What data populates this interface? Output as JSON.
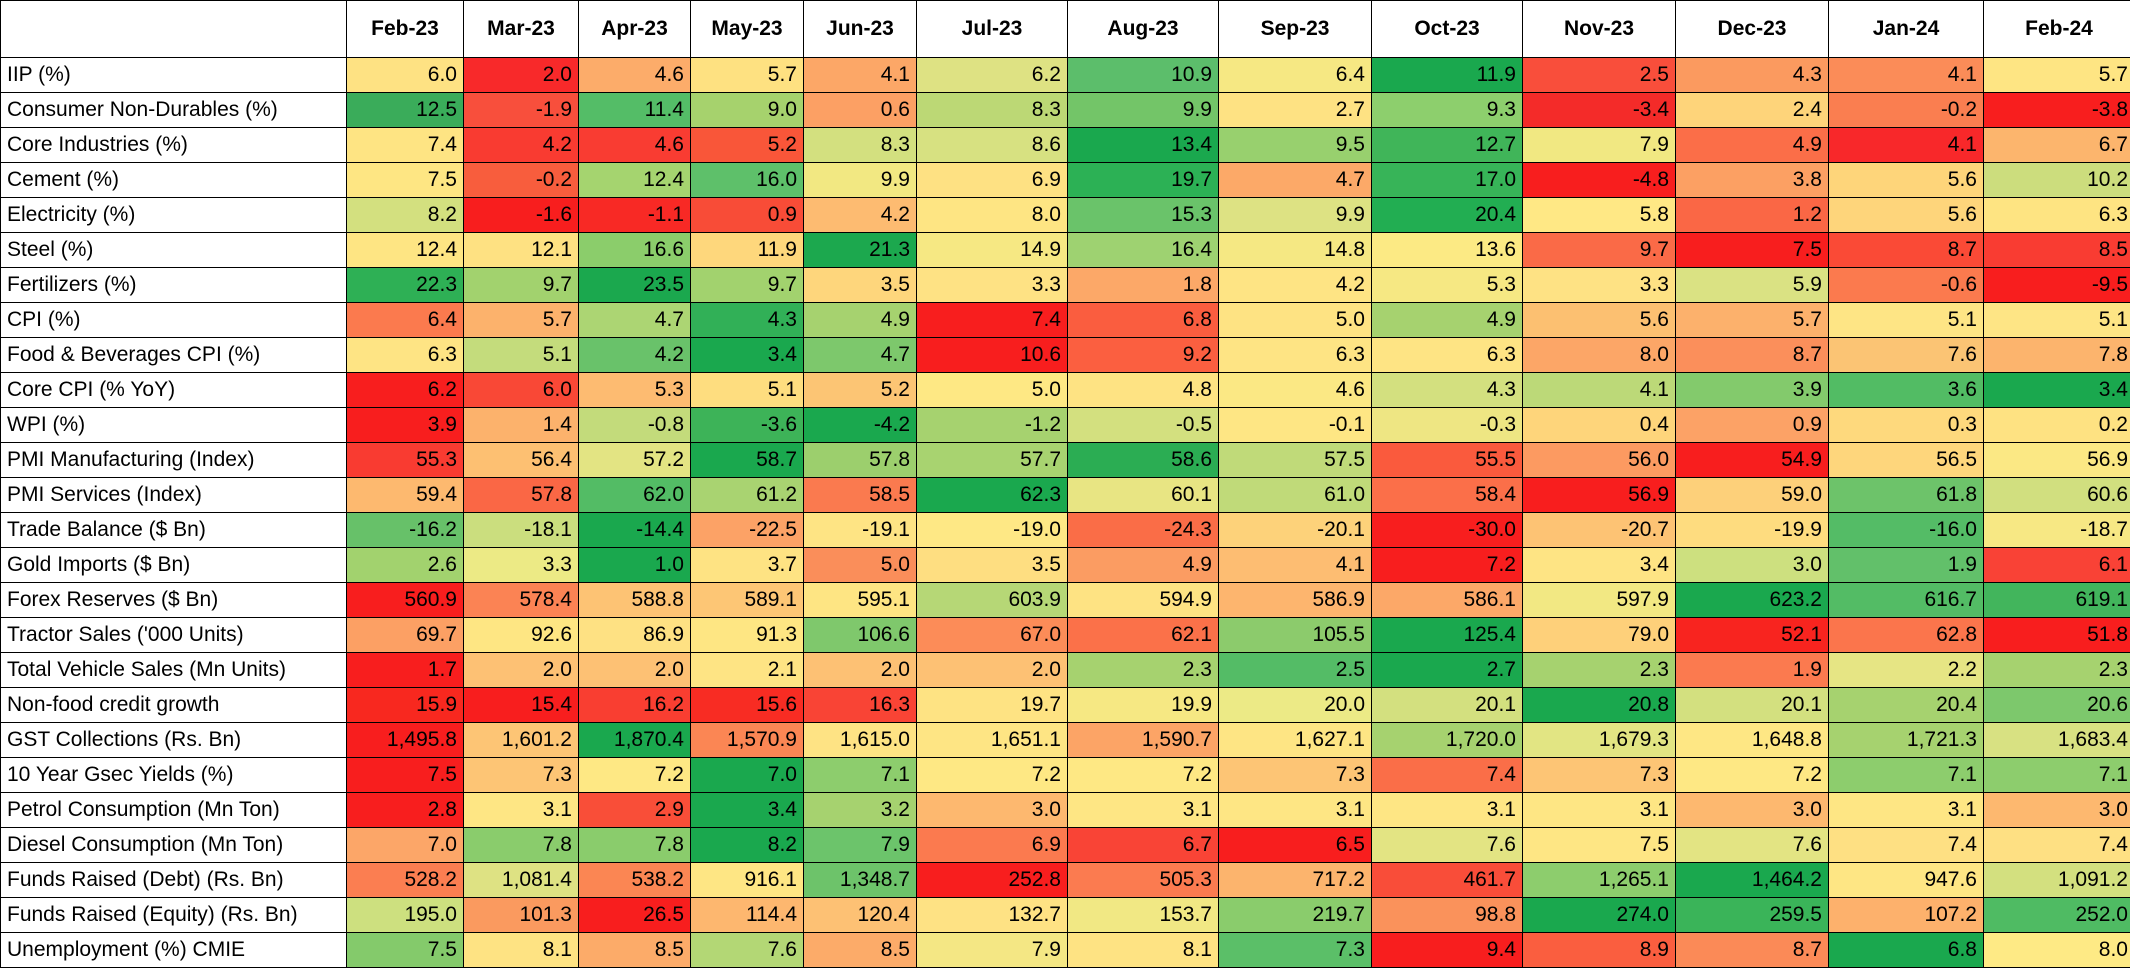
{
  "chart_data": {
    "type": "table",
    "columns": [
      "Feb-23",
      "Mar-23",
      "Apr-23",
      "May-23",
      "Jun-23",
      "Jul-23",
      "Aug-23",
      "Sep-23",
      "Oct-23",
      "Nov-23",
      "Dec-23",
      "Jan-24",
      "Feb-24"
    ],
    "rows": [
      {
        "label": "IIP (%)",
        "values": [
          "6.0",
          "2.0",
          "4.6",
          "5.7",
          "4.1",
          "6.2",
          "10.9",
          "6.4",
          "11.9",
          "2.5",
          "4.3",
          "4.1",
          "5.7"
        ],
        "colors": [
          "#fee283",
          "#f8292a",
          "#fcac6a",
          "#fee181",
          "#fca767",
          "#dee283",
          "#5cbe6b",
          "#f6e883",
          "#1aa84e",
          "#f94e3b",
          "#fb9a5f",
          "#fb8c58",
          "#fee583"
        ]
      },
      {
        "label": "Consumer Non-Durables (%)",
        "values": [
          "12.5",
          "-1.9",
          "11.4",
          "9.0",
          "0.6",
          "8.3",
          "9.9",
          "2.7",
          "9.3",
          "-3.4",
          "2.4",
          "-0.2",
          "-3.8"
        ],
        "colors": [
          "#3aac5a",
          "#f84f3c",
          "#54bd67",
          "#a6d26d",
          "#fca064",
          "#bcd875",
          "#73c568",
          "#fee283",
          "#8dcf6d",
          "#f42b29",
          "#fed47a",
          "#fa7e50",
          "#f81e1e"
        ]
      },
      {
        "label": "Core Industries (%)",
        "values": [
          "7.4",
          "4.2",
          "4.6",
          "5.2",
          "8.3",
          "8.6",
          "13.4",
          "9.5",
          "12.7",
          "7.9",
          "4.9",
          "4.1",
          "6.7"
        ],
        "colors": [
          "#fee483",
          "#f93b31",
          "#f93c32",
          "#f95639",
          "#d3e07f",
          "#d7e181",
          "#1aa84e",
          "#98d06e",
          "#40b559",
          "#f1e882",
          "#fb6e48",
          "#f8282a",
          "#fcb56d"
        ]
      },
      {
        "label": "Cement (%)",
        "values": [
          "7.5",
          "-0.2",
          "12.4",
          "16.0",
          "9.9",
          "6.9",
          "19.7",
          "4.7",
          "17.0",
          "-4.8",
          "3.8",
          "5.6",
          "10.2"
        ],
        "colors": [
          "#fee683",
          "#f85d3d",
          "#a5d46f",
          "#5ec06a",
          "#f2e882",
          "#fee183",
          "#2cb155",
          "#fca968",
          "#37b458",
          "#f81e1e",
          "#fca063",
          "#fed57a",
          "#ccdd7d"
        ]
      },
      {
        "label": "Electricity (%)",
        "values": [
          "8.2",
          "-1.6",
          "-1.1",
          "0.9",
          "4.2",
          "8.0",
          "15.3",
          "9.9",
          "20.4",
          "5.8",
          "1.2",
          "5.6",
          "6.3"
        ],
        "colors": [
          "#d3e07f",
          "#f81e1e",
          "#f82925",
          "#f84c37",
          "#fdbb71",
          "#fee583",
          "#6ac36a",
          "#dde283",
          "#22ae52",
          "#ffe885",
          "#fa6745",
          "#fed57b",
          "#fee482"
        ]
      },
      {
        "label": "Steel (%)",
        "values": [
          "12.4",
          "12.1",
          "16.6",
          "11.9",
          "21.3",
          "14.9",
          "16.4",
          "14.8",
          "13.6",
          "9.7",
          "7.5",
          "8.7",
          "8.5"
        ],
        "colors": [
          "#fee583",
          "#fee182",
          "#8bcd6b",
          "#fed77c",
          "#1ca84e",
          "#f6e883",
          "#9ed271",
          "#f5e883",
          "#fcea84",
          "#fa6a47",
          "#f81e1e",
          "#fa4a36",
          "#f93c32"
        ]
      },
      {
        "label": "Fertilizers (%)",
        "values": [
          "22.3",
          "9.7",
          "23.5",
          "9.7",
          "3.5",
          "3.3",
          "1.8",
          "4.2",
          "5.3",
          "3.3",
          "5.9",
          "-0.6",
          "-9.5"
        ],
        "colors": [
          "#2eb055",
          "#a2d26e",
          "#1ba84e",
          "#a2d26e",
          "#fed67c",
          "#fee284",
          "#fca868",
          "#fee484",
          "#f6e883",
          "#fee284",
          "#dae283",
          "#fb7a4e",
          "#f81e1e"
        ]
      },
      {
        "label": "CPI (%)",
        "values": [
          "6.4",
          "5.7",
          "4.7",
          "4.3",
          "4.9",
          "7.4",
          "6.8",
          "5.0",
          "4.9",
          "5.6",
          "5.7",
          "5.1",
          "5.1"
        ],
        "colors": [
          "#fb7a4e",
          "#fcb26c",
          "#acd573",
          "#31b057",
          "#a6d26f",
          "#f81e1e",
          "#fa5d3f",
          "#fee383",
          "#a6d26f",
          "#fcc071",
          "#fcb16c",
          "#fee585",
          "#fee585"
        ]
      },
      {
        "label": "Food & Beverages CPI (%)",
        "values": [
          "6.3",
          "5.1",
          "4.2",
          "3.4",
          "4.7",
          "10.6",
          "9.2",
          "6.3",
          "6.3",
          "8.0",
          "8.7",
          "7.6",
          "7.8"
        ],
        "colors": [
          "#fee484",
          "#c4dc7c",
          "#69c26a",
          "#1aa84e",
          "#7dc86c",
          "#f81e1e",
          "#fb5f40",
          "#fee484",
          "#fee484",
          "#fca667",
          "#fb8f5b",
          "#fbc474",
          "#fcb46d"
        ]
      },
      {
        "label": "Core CPI (% YoY)",
        "values": [
          "6.2",
          "6.0",
          "5.3",
          "5.1",
          "5.2",
          "5.0",
          "4.8",
          "4.6",
          "4.3",
          "4.1",
          "3.9",
          "3.6",
          "3.4"
        ],
        "colors": [
          "#f81e1e",
          "#f94836",
          "#fdbb71",
          "#fedd7f",
          "#fcc574",
          "#fee884",
          "#fee383",
          "#fbe884",
          "#d3e07f",
          "#bcd978",
          "#83ca6c",
          "#52bc64",
          "#1aa84e"
        ]
      },
      {
        "label": "WPI (%)",
        "values": [
          "3.9",
          "1.4",
          "-0.8",
          "-3.6",
          "-4.2",
          "-1.2",
          "-0.5",
          "-0.1",
          "-0.3",
          "0.4",
          "0.9",
          "0.3",
          "0.2"
        ],
        "colors": [
          "#f81e1e",
          "#fcb26c",
          "#c3db7b",
          "#3db358",
          "#1aa84e",
          "#a6d26f",
          "#d3e07f",
          "#fee684",
          "#eee683",
          "#fed57b",
          "#fca266",
          "#fed97d",
          "#fee282"
        ]
      },
      {
        "label": "PMI Manufacturing (Index)",
        "values": [
          "55.3",
          "56.4",
          "57.2",
          "58.7",
          "57.8",
          "57.7",
          "58.6",
          "57.5",
          "55.5",
          "56.0",
          "54.9",
          "56.5",
          "56.9"
        ],
        "colors": [
          "#f93b31",
          "#fdc072",
          "#e3e483",
          "#1aa84e",
          "#9ccf6d",
          "#a8d370",
          "#2bad53",
          "#c0da79",
          "#fa5a3d",
          "#fc9a61",
          "#f81e1e",
          "#fed67c",
          "#fbe884"
        ]
      },
      {
        "label": "PMI Services (Index)",
        "values": [
          "59.4",
          "57.8",
          "62.0",
          "61.2",
          "58.5",
          "62.3",
          "60.1",
          "61.0",
          "58.4",
          "56.9",
          "59.0",
          "61.8",
          "60.6"
        ],
        "colors": [
          "#fdb96f",
          "#fa6745",
          "#53bc65",
          "#a9d371",
          "#fa7a4f",
          "#1aa84e",
          "#e8e583",
          "#c0da79",
          "#fb6f49",
          "#f81e1e",
          "#fdd07a",
          "#6dc36a",
          "#d1df7f"
        ]
      },
      {
        "label": "Trade Balance ($ Bn)",
        "values": [
          "-16.2",
          "-18.1",
          "-14.4",
          "-22.5",
          "-19.1",
          "-19.0",
          "-24.3",
          "-20.1",
          "-30.0",
          "-20.7",
          "-19.9",
          "-16.0",
          "-18.7"
        ],
        "colors": [
          "#67c169",
          "#cbde7e",
          "#1aa84e",
          "#fca266",
          "#fee484",
          "#fee885",
          "#fa6d47",
          "#fdd27a",
          "#f81e1e",
          "#fdc374",
          "#fedc7f",
          "#54bc66",
          "#f7e884"
        ]
      },
      {
        "label": "Gold Imports ($ Bn)",
        "values": [
          "2.6",
          "3.3",
          "1.0",
          "3.7",
          "5.0",
          "3.5",
          "4.9",
          "4.1",
          "7.2",
          "3.4",
          "3.0",
          "1.9",
          "6.1"
        ],
        "colors": [
          "#a2d26e",
          "#ecea85",
          "#1aa84e",
          "#fee383",
          "#fa8e5a",
          "#fede81",
          "#fb9c62",
          "#fdbd72",
          "#f81e1e",
          "#fee484",
          "#cde07f",
          "#62c06a",
          "#f94236"
        ]
      },
      {
        "label": "Forex Reserves ($ Bn)",
        "values": [
          "560.9",
          "578.4",
          "588.8",
          "589.1",
          "595.1",
          "603.9",
          "594.9",
          "586.9",
          "586.1",
          "597.9",
          "623.2",
          "616.7",
          "619.1"
        ],
        "colors": [
          "#f81e1e",
          "#fb8354",
          "#fdc374",
          "#fdc675",
          "#fee583",
          "#b6d776",
          "#fee383",
          "#fdb56e",
          "#fca868",
          "#f2e883",
          "#1aa84e",
          "#53bc65",
          "#42b55c"
        ]
      },
      {
        "label": "Tractor Sales ('000 Units)",
        "values": [
          "69.7",
          "92.6",
          "86.9",
          "91.3",
          "106.6",
          "67.0",
          "62.1",
          "105.5",
          "125.4",
          "79.0",
          "52.1",
          "62.8",
          "51.8"
        ],
        "colors": [
          "#fca064",
          "#fee683",
          "#fee183",
          "#fee683",
          "#7fc86c",
          "#fc8c58",
          "#fb7149",
          "#8ccb6c",
          "#1aa84e",
          "#fed07a",
          "#f8241f",
          "#fb754c",
          "#f81e1e"
        ]
      },
      {
        "label": "Total Vehicle Sales (Mn Units)",
        "values": [
          "1.7",
          "2.0",
          "2.0",
          "2.1",
          "2.0",
          "2.0",
          "2.3",
          "2.5",
          "2.7",
          "2.3",
          "1.9",
          "2.2",
          "2.3"
        ],
        "colors": [
          "#f81e1e",
          "#fdc174",
          "#fdc174",
          "#fee484",
          "#fdc174",
          "#fdc174",
          "#a6d26f",
          "#54bc66",
          "#1aa84e",
          "#a6d26f",
          "#fb7a4f",
          "#e6e584",
          "#a6d26f"
        ]
      },
      {
        "label": "Non-food credit growth",
        "values": [
          "15.9",
          "15.4",
          "16.2",
          "15.6",
          "16.3",
          "19.7",
          "19.9",
          "20.0",
          "20.1",
          "20.8",
          "20.1",
          "20.4",
          "20.6"
        ],
        "colors": [
          "#f8281f",
          "#f81e1e",
          "#f93e31",
          "#f82c23",
          "#f94435",
          "#fee383",
          "#f6e883",
          "#ecea86",
          "#d3e07f",
          "#1aa84e",
          "#d3e07f",
          "#a6d26f",
          "#7dc86c"
        ]
      },
      {
        "label": "GST Collections (Rs. Bn)",
        "values": [
          "1,495.8",
          "1,601.2",
          "1,870.4",
          "1,570.9",
          "1,615.0",
          "1,651.1",
          "1,590.7",
          "1,627.1",
          "1,720.0",
          "1,679.3",
          "1,648.8",
          "1,721.3",
          "1,683.4"
        ],
        "colors": [
          "#f81e1e",
          "#fdc575",
          "#1aa84e",
          "#fb8654",
          "#fee384",
          "#fee584",
          "#fca466",
          "#fee584",
          "#a6d26f",
          "#e2e583",
          "#fee784",
          "#a6d26f",
          "#d8e182"
        ]
      },
      {
        "label": "10 Year Gsec Yields (%)",
        "values": [
          "7.5",
          "7.3",
          "7.2",
          "7.0",
          "7.1",
          "7.2",
          "7.2",
          "7.3",
          "7.4",
          "7.3",
          "7.2",
          "7.1",
          "7.1"
        ],
        "colors": [
          "#f81e1e",
          "#fdc575",
          "#fee884",
          "#1aa84e",
          "#8dcd6d",
          "#fee884",
          "#fee884",
          "#fdc575",
          "#fa6e48",
          "#fdc575",
          "#fee884",
          "#8dcd6d",
          "#8dcd6d"
        ]
      },
      {
        "label": "Petrol Consumption (Mn Ton)",
        "values": [
          "2.8",
          "3.1",
          "2.9",
          "3.4",
          "3.2",
          "3.0",
          "3.1",
          "3.1",
          "3.1",
          "3.1",
          "3.0",
          "3.1",
          "3.0"
        ],
        "colors": [
          "#f81e1e",
          "#fee684",
          "#f94e38",
          "#1aa84e",
          "#a6d26f",
          "#fdb86f",
          "#fee684",
          "#fee684",
          "#fee684",
          "#fee684",
          "#fdb86f",
          "#fee684",
          "#fdb86f"
        ]
      },
      {
        "label": "Diesel Consumption (Mn Ton)",
        "values": [
          "7.0",
          "7.8",
          "7.8",
          "8.2",
          "7.9",
          "6.9",
          "6.7",
          "6.5",
          "7.6",
          "7.5",
          "7.6",
          "7.4",
          "7.4"
        ],
        "colors": [
          "#fca668",
          "#8acc6c",
          "#8acc6c",
          "#1aa84e",
          "#6cc46b",
          "#fb7a4f",
          "#f94436",
          "#f81e1e",
          "#e3e483",
          "#fee684",
          "#e3e483",
          "#fee083",
          "#fee083"
        ]
      },
      {
        "label": "Funds Raised (Debt) (Rs. Bn)",
        "values": [
          "528.2",
          "1,081.4",
          "538.2",
          "916.1",
          "1,348.7",
          "252.8",
          "505.3",
          "717.2",
          "461.7",
          "1,265.1",
          "1,464.2",
          "947.6",
          "1,091.2"
        ],
        "colors": [
          "#fb7e51",
          "#dee283",
          "#fb8653",
          "#fee684",
          "#6dc36a",
          "#f81e1e",
          "#fb7b50",
          "#fcb46d",
          "#f94d39",
          "#8dcd6d",
          "#1aa84e",
          "#fee684",
          "#d3e07f"
        ]
      },
      {
        "label": "Funds Raised (Equity) (Rs. Bn)",
        "values": [
          "195.0",
          "101.3",
          "26.5",
          "114.4",
          "120.4",
          "132.7",
          "153.7",
          "219.7",
          "98.8",
          "274.0",
          "259.5",
          "107.2",
          "252.0"
        ],
        "colors": [
          "#cde07f",
          "#fa9a5f",
          "#f81e1e",
          "#fdb76f",
          "#fdc174",
          "#fee284",
          "#f1e884",
          "#8acc6c",
          "#fa925b",
          "#1aa84e",
          "#3ab459",
          "#fdb16c",
          "#4fbb63"
        ]
      },
      {
        "label": "Unemployment (%) CMIE",
        "values": [
          "7.5",
          "8.1",
          "8.5",
          "7.6",
          "8.5",
          "7.9",
          "8.1",
          "7.3",
          "9.4",
          "8.9",
          "8.7",
          "6.8",
          "8.0"
        ],
        "colors": [
          "#84ca6b",
          "#fee383",
          "#fcab69",
          "#b3d775",
          "#fcab69",
          "#f4e784",
          "#fee383",
          "#5bbf68",
          "#f81e1e",
          "#fa5e3f",
          "#fb8a57",
          "#1aa84e",
          "#feea85"
        ]
      }
    ]
  }
}
